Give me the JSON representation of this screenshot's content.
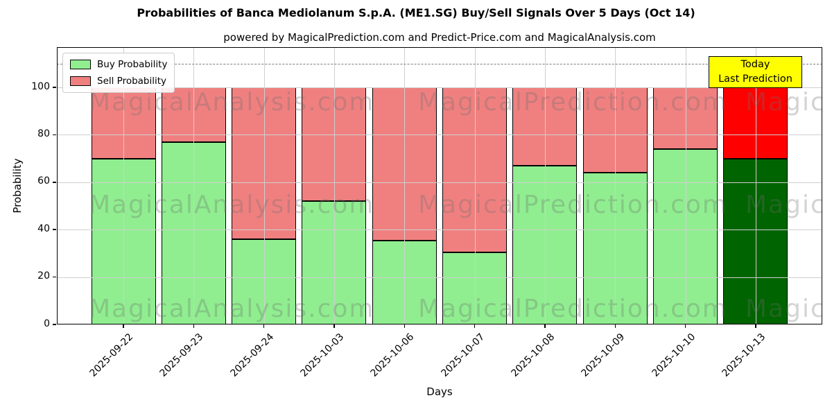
{
  "title": "Probabilities of Banca Mediolanum S.p.A. (ME1.SG) Buy/Sell Signals Over 5 Days (Oct 14)",
  "subtitle": "powered by MagicalPrediction.com and Predict-Price.com and MagicalAnalysis.com",
  "xlabel": "Days",
  "ylabel": "Probability",
  "annotation": {
    "line1": "Today",
    "line2": "Last Prediction",
    "bg_color": "#ffff00"
  },
  "legend": {
    "items": [
      {
        "label": "Buy Probability",
        "color": "#90ee90"
      },
      {
        "label": "Sell Probability",
        "color": "#f08080"
      }
    ]
  },
  "watermark": {
    "segments": [
      "MagicalAnalysis.com",
      "MagicalPrediction.com",
      "MagicalAnalysis.com"
    ],
    "color": "rgba(110,110,110,0.30)"
  },
  "chart_data": {
    "type": "bar",
    "stacked": true,
    "title": "Probabilities of Banca Mediolanum S.p.A. (ME1.SG) Buy/Sell Signals Over 5 Days (Oct 14)",
    "subtitle": "powered by MagicalPrediction.com and Predict-Price.com and MagicalAnalysis.com",
    "xlabel": "Days",
    "ylabel": "Probability",
    "categories": [
      "2025-09-22",
      "2025-09-23",
      "2025-09-24",
      "2025-10-03",
      "2025-10-06",
      "2025-10-07",
      "2025-10-08",
      "2025-10-09",
      "2025-10-10",
      "2025-10-13"
    ],
    "series": [
      {
        "name": "Buy Probability",
        "values": [
          70,
          77,
          36,
          52,
          35.5,
          30.5,
          67,
          64,
          74,
          70
        ]
      },
      {
        "name": "Sell Probability",
        "values": [
          30,
          23,
          64,
          48,
          64.5,
          69.5,
          33,
          36,
          26,
          30
        ]
      }
    ],
    "colors": {
      "buy": "#90ee90",
      "sell": "#f08080",
      "buy_last": "#006400",
      "sell_last": "#ff0000",
      "edge": "#000000"
    },
    "yticks": [
      0,
      20,
      40,
      60,
      80,
      100
    ],
    "ylim": [
      0,
      117
    ],
    "dashed_line_y": 110,
    "grid": true,
    "legend_position": "upper left",
    "last_bar_note": "2025-10-13 is highlighted as Today / Last Prediction"
  }
}
